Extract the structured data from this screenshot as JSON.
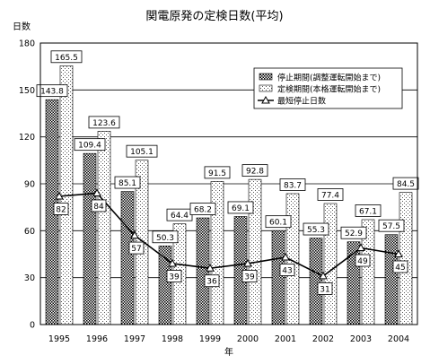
{
  "chart_data": {
    "type": "bar",
    "title": "関電原発の定検日数(平均)",
    "ylabel": "日数",
    "xlabel": "年",
    "ylim": [
      0,
      180
    ],
    "yticks": [
      0,
      30,
      60,
      90,
      120,
      150,
      180
    ],
    "categories": [
      "1995",
      "1996",
      "1997",
      "1998",
      "1999",
      "2000",
      "2001",
      "2002",
      "2003",
      "2004"
    ],
    "grid": true,
    "legend_position": "top-right",
    "series": [
      {
        "name": "停止期間(調整運転開始まで)",
        "kind": "bar",
        "pattern": "dense-dots",
        "values": [
          143.8,
          109.4,
          85.1,
          50.3,
          68.2,
          69.1,
          60.1,
          55.3,
          52.9,
          57.5
        ],
        "labels": [
          "143.8",
          "109.4",
          "85.1",
          "50.3",
          "68.2",
          "69.1",
          "60.1",
          "55.3",
          "52.9",
          "57.5"
        ]
      },
      {
        "name": "定検期間(本格運転開始まで)",
        "kind": "bar",
        "pattern": "sparse-dots",
        "values": [
          165.5,
          123.6,
          105.1,
          64.4,
          91.5,
          92.8,
          83.7,
          77.4,
          67.1,
          84.5
        ],
        "labels": [
          "165.5",
          "123.6",
          "105.1",
          "64.4",
          "91.5",
          "92.8",
          "83.7",
          "77.4",
          "67.1",
          "84.5"
        ]
      },
      {
        "name": "最短停止日数",
        "kind": "line",
        "marker": "triangle",
        "values": [
          82,
          84,
          57,
          39,
          36,
          39,
          43,
          31,
          49,
          45
        ],
        "labels": [
          "82",
          "84",
          "57",
          "39",
          "36",
          "39",
          "43",
          "31",
          "49",
          "45"
        ]
      }
    ]
  }
}
